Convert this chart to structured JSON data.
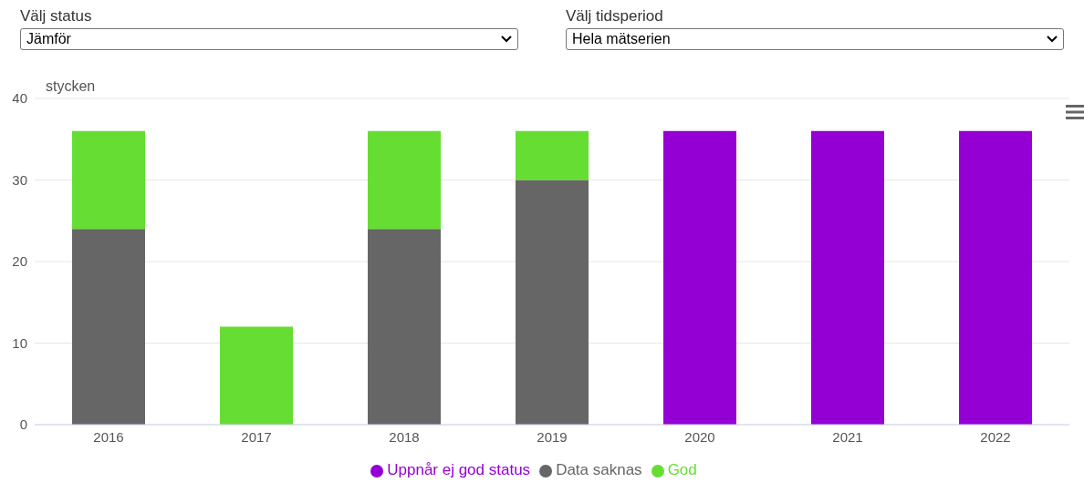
{
  "chart_data": {
    "type": "bar",
    "stacked": true,
    "ylabel": "stycken",
    "categories": [
      "2016",
      "2017",
      "2018",
      "2019",
      "2020",
      "2021",
      "2022"
    ],
    "series": [
      {
        "name": "Uppnår ej god status",
        "color": "#9400d3",
        "values": [
          0,
          0,
          0,
          0,
          36,
          36,
          36
        ]
      },
      {
        "name": "Data saknas",
        "color": "#666666",
        "values": [
          24,
          0,
          24,
          30,
          0,
          0,
          0
        ]
      },
      {
        "name": "God",
        "color": "#66dd33",
        "values": [
          12,
          12,
          12,
          6,
          0,
          0,
          0
        ]
      }
    ],
    "ylim": [
      0,
      40
    ],
    "yticks": [
      0,
      10,
      20,
      30,
      40
    ],
    "grid": "y",
    "legend": "bottom",
    "annotations": [
      "Välj status",
      "Jämför",
      "Välj tidsperiod",
      "Hela mätserien"
    ]
  }
}
